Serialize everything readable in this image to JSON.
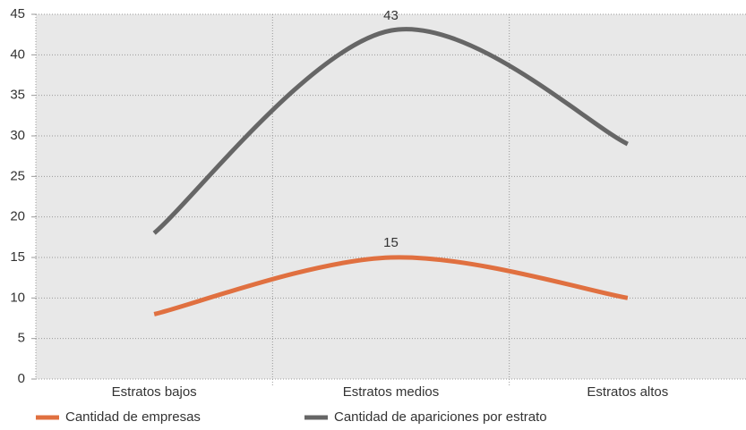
{
  "chart_data": {
    "type": "line",
    "categories": [
      "Estratos bajos",
      "Estratos medios",
      "Estratos altos"
    ],
    "series": [
      {
        "name": "Cantidad de empresas",
        "color": "#e07040",
        "values": [
          8,
          15,
          10
        ],
        "value_labels": [
          null,
          "15",
          null
        ]
      },
      {
        "name": "Cantidad de apariciones por estrato",
        "color": "#666666",
        "values": [
          18,
          43,
          29
        ],
        "value_labels": [
          null,
          "43",
          null
        ]
      }
    ],
    "ylim": [
      0,
      45
    ],
    "yticks": [
      0,
      5,
      10,
      15,
      20,
      25,
      30,
      35,
      40,
      45
    ],
    "grid": true,
    "smooth": true,
    "legend": "bottom"
  }
}
